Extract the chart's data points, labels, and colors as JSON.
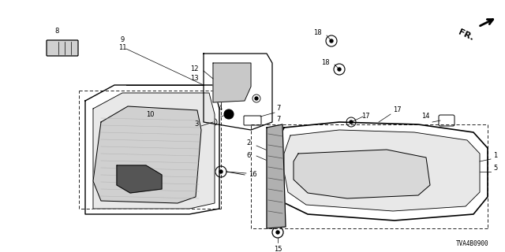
{
  "bg_color": "#ffffff",
  "diagram_id": "TVA4B0900",
  "fr_label": "FR.",
  "lc": "#000000",
  "gray": "#999999",
  "lightgray": "#cccccc",
  "fs_small": 6.0,
  "fs_med": 7.0,
  "fs_id": 5.5
}
